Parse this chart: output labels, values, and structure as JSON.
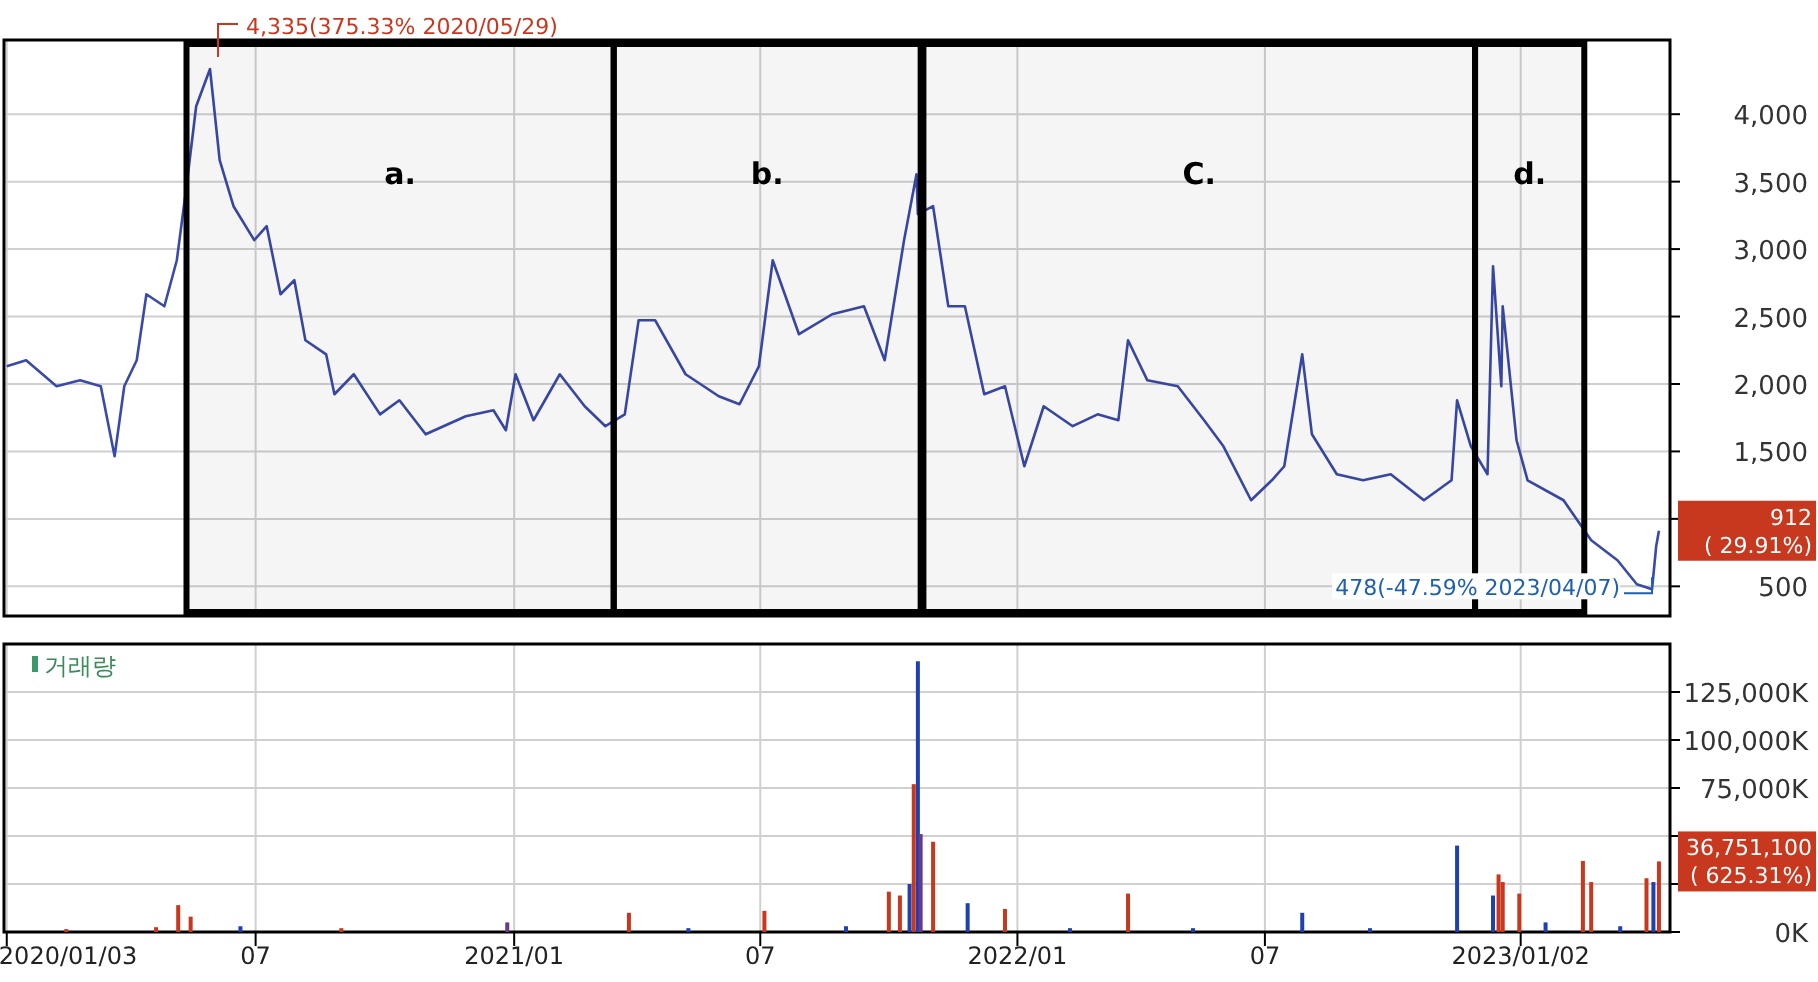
{
  "chart_data": [
    {
      "type": "line",
      "tick_labels": "y",
      "grid": true,
      "xlim": [
        "2020-01-01",
        "2023-04-20"
      ],
      "xticks": [
        {
          "value": "2020-01-03",
          "label": null
        },
        {
          "value": "2020-07-01",
          "label": null
        },
        {
          "value": "2021-01-04",
          "label": null
        },
        {
          "value": "2021-07-01",
          "label": null
        },
        {
          "value": "2022-01-03",
          "label": null
        },
        {
          "value": "2022-07-01",
          "label": null
        },
        {
          "value": "2023-01-02",
          "label": null
        }
      ],
      "ylim": [
        280,
        4550
      ],
      "yticks": [
        {
          "value": 500,
          "label": "500"
        },
        {
          "value": 1000,
          "label": null
        },
        {
          "value": 1500,
          "label": "1,500"
        },
        {
          "value": 2000,
          "label": "2,000"
        },
        {
          "value": 2500,
          "label": "2,500"
        },
        {
          "value": 3000,
          "label": "3,000"
        },
        {
          "value": 3500,
          "label": "3,500"
        },
        {
          "value": 4000,
          "label": "4,000"
        }
      ],
      "series": [
        {
          "color": "#3a4aa8",
          "x": [
            "2020-01-03",
            "2020-01-17",
            "2020-02-08",
            "2020-02-25",
            "2020-03-11",
            "2020-03-21",
            "2020-03-28",
            "2020-04-06",
            "2020-04-13",
            "2020-04-26",
            "2020-05-05",
            "2020-05-12",
            "2020-05-19",
            "2020-05-29",
            "2020-06-05",
            "2020-06-15",
            "2020-06-30",
            "2020-07-09",
            "2020-07-19",
            "2020-07-29",
            "2020-08-06",
            "2020-08-21",
            "2020-08-27",
            "2020-09-10",
            "2020-09-29",
            "2020-10-13",
            "2020-11-01",
            "2020-11-30",
            "2020-12-20",
            "2020-12-29",
            "2021-01-05",
            "2021-01-18",
            "2021-02-06",
            "2021-02-24",
            "2021-03-11",
            "2021-03-25",
            "2021-04-04",
            "2021-04-16",
            "2021-05-08",
            "2021-06-01",
            "2021-06-16",
            "2021-06-30",
            "2021-07-10",
            "2021-07-29",
            "2021-08-22",
            "2021-09-14",
            "2021-09-29",
            "2021-10-13",
            "2021-10-22",
            "2021-10-23",
            "2021-11-03",
            "2021-11-14",
            "2021-11-26",
            "2021-12-10",
            "2021-12-25",
            "2022-01-08",
            "2022-01-22",
            "2022-02-12",
            "2022-03-02",
            "2022-03-17",
            "2022-03-24",
            "2022-04-07",
            "2022-04-29",
            "2022-05-18",
            "2022-06-01",
            "2022-06-21",
            "2022-07-06",
            "2022-07-15",
            "2022-07-28",
            "2022-08-04",
            "2022-08-22",
            "2022-09-10",
            "2022-09-30",
            "2022-10-24",
            "2022-11-13",
            "2022-11-17",
            "2022-11-27",
            "2022-12-09",
            "2022-12-13",
            "2022-12-19",
            "2022-12-20",
            "2022-12-30",
            "2023-01-07",
            "2023-02-02",
            "2023-02-12",
            "2023-02-22",
            "2023-03-13",
            "2023-03-27",
            "2023-04-07",
            "2023-04-10",
            "2023-04-12"
          ],
          "values": [
            2131,
            2176,
            1983,
            2027,
            1983,
            1464,
            1983,
            2176,
            2665,
            2576,
            2917,
            3466,
            4059,
            4335,
            3659,
            3318,
            3066,
            3170,
            2665,
            2769,
            2324,
            2220,
            1924,
            2072,
            1775,
            1879,
            1627,
            1761,
            1805,
            1657,
            2072,
            1731,
            2072,
            1835,
            1687,
            1775,
            2472,
            2472,
            2072,
            1909,
            1850,
            2131,
            2917,
            2369,
            2517,
            2576,
            2176,
            3066,
            3555,
            3259,
            3318,
            2576,
            2576,
            1924,
            1983,
            1390,
            1835,
            1687,
            1775,
            1731,
            2324,
            2027,
            1983,
            1731,
            1538,
            1138,
            1286,
            1390,
            2220,
            1627,
            1331,
            1286,
            1331,
            1138,
            1286,
            1879,
            1538,
            1331,
            2873,
            1983,
            2576,
            1583,
            1286,
            1138,
            989,
            841,
            693,
            515,
            478,
            797,
            912
          ]
        }
      ],
      "annotations": [
        {
          "text": "4,335(375.33% 2020/05/29)",
          "x": "2020-05-29",
          "y": 4335
        },
        {
          "text": "478(-47.59% 2023/04/07)",
          "x": "2023-04-07",
          "y": 478
        },
        {
          "text": "912 ( 29.91%)",
          "x": "2023-04-12",
          "y": 912
        }
      ],
      "bands": [
        {
          "axis": "x",
          "from": "2020-05-12",
          "to": "2021-03-17",
          "label": "a."
        },
        {
          "axis": "x",
          "from": "2021-03-17",
          "to": "2021-10-25",
          "label": "b."
        },
        {
          "axis": "x",
          "from": "2021-10-27",
          "to": "2022-11-30",
          "label": "C."
        },
        {
          "axis": "x",
          "from": "2022-11-30",
          "to": "2023-02-17",
          "label": "d."
        }
      ]
    },
    {
      "type": "bar",
      "title": "거래량",
      "grid": true,
      "xlim": [
        "2020-01-01",
        "2023-04-20"
      ],
      "xticks": [
        {
          "value": "2020-01-03",
          "label": "2020/01/03"
        },
        {
          "value": "2020-07-01",
          "label": "07"
        },
        {
          "value": "2021-01-04",
          "label": "2021/01"
        },
        {
          "value": "2021-07-01",
          "label": "07"
        },
        {
          "value": "2022-01-03",
          "label": "2022/01"
        },
        {
          "value": "2022-07-01",
          "label": "07"
        },
        {
          "value": "2023-01-02",
          "label": "2023/01/02"
        }
      ],
      "ylim": [
        0,
        150000
      ],
      "yticks": [
        {
          "value": 0,
          "label": "0K"
        },
        {
          "value": 25000,
          "label": null
        },
        {
          "value": 50000,
          "label": null
        },
        {
          "value": 75000,
          "label": "75,000K"
        },
        {
          "value": 100000,
          "label": "100,000K"
        },
        {
          "value": 125000,
          "label": "125,000K"
        }
      ],
      "x": [
        "2020-02-15",
        "2020-04-20",
        "2020-05-06",
        "2020-05-15",
        "2020-06-20",
        "2020-09-01",
        "2020-12-30",
        "2021-03-28",
        "2021-05-10",
        "2021-07-04",
        "2021-09-01",
        "2021-10-02",
        "2021-10-10",
        "2021-10-17",
        "2021-10-20",
        "2021-10-23",
        "2021-10-25",
        "2021-11-03",
        "2021-11-28",
        "2021-12-25",
        "2022-02-10",
        "2022-03-24",
        "2022-05-10",
        "2022-07-28",
        "2022-09-15",
        "2022-11-17",
        "2022-12-13",
        "2022-12-17",
        "2022-12-20",
        "2023-01-01",
        "2023-01-20",
        "2023-02-16",
        "2023-02-22",
        "2023-03-15",
        "2023-04-03",
        "2023-04-08",
        "2023-04-12"
      ],
      "values": [
        1500,
        2500,
        14000,
        8000,
        3000,
        2000,
        5000,
        10000,
        2000,
        11000,
        3000,
        21000,
        19000,
        25000,
        77000,
        141000,
        51000,
        47000,
        15000,
        12000,
        2000,
        20000,
        2000,
        10000,
        2000,
        45000,
        19000,
        30000,
        26000,
        20000,
        5000,
        37000,
        26000,
        3000,
        28000,
        26000,
        36751.1
      ],
      "colors": [
        "#c8381e",
        "#c8381e",
        "#c8381e",
        "#c8381e",
        "#2040b0",
        "#c8381e",
        "#6a3a8a",
        "#c8381e",
        "#2040b0",
        "#c8381e",
        "#2040b0",
        "#c8381e",
        "#c8381e",
        "#2040b0",
        "#c8381e",
        "#2040b0",
        "#6a3a8a",
        "#c8381e",
        "#2040b0",
        "#c8381e",
        "#2040b0",
        "#c8381e",
        "#2040b0",
        "#2040b0",
        "#2040b0",
        "#2040b0",
        "#2040b0",
        "#c8381e",
        "#c8381e",
        "#c8381e",
        "#2040b0",
        "#c8381e",
        "#c8381e",
        "#2040b0",
        "#c8381e",
        "#2040b0",
        "#c8381e"
      ],
      "annotations": [
        {
          "text": "36,751,100 ( 625.31%)",
          "x": "2023-04-12",
          "y": 36751.1
        }
      ]
    }
  ]
}
